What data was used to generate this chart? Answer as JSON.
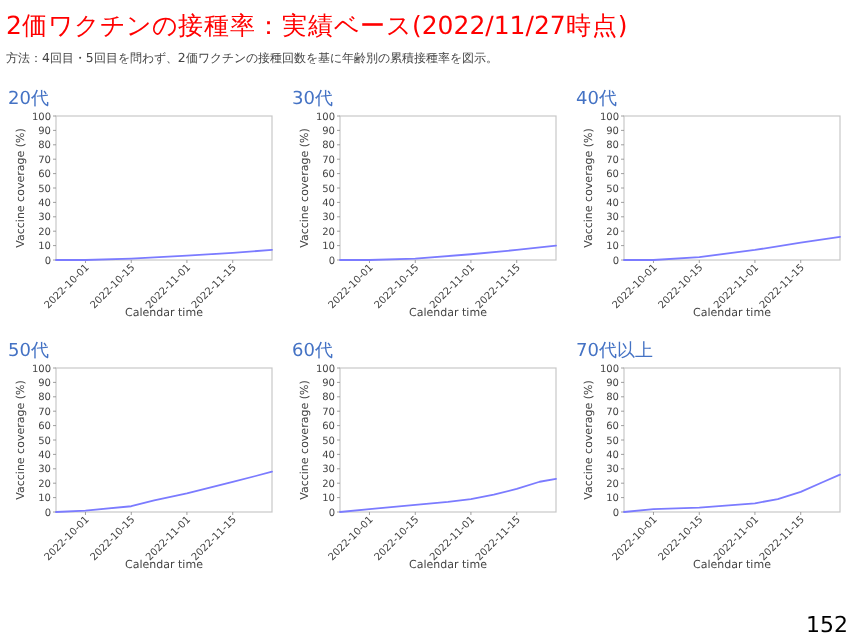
{
  "chart_data": [
    {
      "type": "line",
      "title": "20代",
      "annotations": [
        "2価ワクチンの接種率：実績ベース(2022/11/27時点)",
        "方法：4回目・5回目を問わず、2価ワクチンの接種回数を基に年齢別の累積接種率を図示。",
        "152"
      ],
      "xlabel": "Calendar time",
      "ylabel": "Vaccine coverage (%)",
      "x": [
        "2022-09-22",
        "2022-10-01",
        "2022-10-15",
        "2022-11-01",
        "2022-11-15",
        "2022-11-27"
      ],
      "series": [
        {
          "color": "#7b7bff",
          "values": [
            0,
            0,
            1,
            3,
            5,
            7
          ]
        }
      ],
      "xlim": [
        "2022-09-22",
        "2022-11-27"
      ],
      "ylim": [
        0,
        100
      ],
      "xticks": [
        "2022-10-01",
        "2022-10-15",
        "2022-11-01",
        "2022-11-15"
      ],
      "yticks": [
        0,
        10,
        20,
        30,
        40,
        50,
        60,
        70,
        80,
        90,
        100
      ]
    },
    {
      "type": "line",
      "title": "30代",
      "xlabel": "Calendar time",
      "ylabel": "Vaccine coverage (%)",
      "x": [
        "2022-09-22",
        "2022-10-01",
        "2022-10-15",
        "2022-11-01",
        "2022-11-15",
        "2022-11-27"
      ],
      "series": [
        {
          "color": "#7b7bff",
          "values": [
            0,
            0,
            1,
            4,
            7,
            10
          ]
        }
      ],
      "xlim": [
        "2022-09-22",
        "2022-11-27"
      ],
      "ylim": [
        0,
        100
      ],
      "xticks": [
        "2022-10-01",
        "2022-10-15",
        "2022-11-01",
        "2022-11-15"
      ],
      "yticks": [
        0,
        10,
        20,
        30,
        40,
        50,
        60,
        70,
        80,
        90,
        100
      ]
    },
    {
      "type": "line",
      "title": "40代",
      "xlabel": "Calendar time",
      "ylabel": "Vaccine coverage (%)",
      "x": [
        "2022-09-22",
        "2022-10-01",
        "2022-10-15",
        "2022-11-01",
        "2022-11-15",
        "2022-11-27"
      ],
      "series": [
        {
          "color": "#7b7bff",
          "values": [
            0,
            0,
            2,
            7,
            12,
            16
          ]
        }
      ],
      "xlim": [
        "2022-09-22",
        "2022-11-27"
      ],
      "ylim": [
        0,
        100
      ],
      "xticks": [
        "2022-10-01",
        "2022-10-15",
        "2022-11-01",
        "2022-11-15"
      ],
      "yticks": [
        0,
        10,
        20,
        30,
        40,
        50,
        60,
        70,
        80,
        90,
        100
      ]
    },
    {
      "type": "line",
      "title": "50代",
      "xlabel": "Calendar time",
      "ylabel": "Vaccine coverage (%)",
      "x": [
        "2022-09-22",
        "2022-10-01",
        "2022-10-15",
        "2022-10-22",
        "2022-11-01",
        "2022-11-08",
        "2022-11-15",
        "2022-11-22",
        "2022-11-27"
      ],
      "series": [
        {
          "color": "#7b7bff",
          "values": [
            0,
            1,
            4,
            8,
            13,
            17,
            21,
            25,
            28
          ]
        }
      ],
      "xlim": [
        "2022-09-22",
        "2022-11-27"
      ],
      "ylim": [
        0,
        100
      ],
      "xticks": [
        "2022-10-01",
        "2022-10-15",
        "2022-11-01",
        "2022-11-15"
      ],
      "yticks": [
        0,
        10,
        20,
        30,
        40,
        50,
        60,
        70,
        80,
        90,
        100
      ]
    },
    {
      "type": "line",
      "title": "60代",
      "xlabel": "Calendar time",
      "ylabel": "Vaccine coverage (%)",
      "x": [
        "2022-09-22",
        "2022-10-01",
        "2022-10-15",
        "2022-10-25",
        "2022-11-01",
        "2022-11-08",
        "2022-11-15",
        "2022-11-22",
        "2022-11-27"
      ],
      "series": [
        {
          "color": "#7b7bff",
          "values": [
            0,
            2,
            5,
            7,
            9,
            12,
            16,
            21,
            23
          ]
        }
      ],
      "xlim": [
        "2022-09-22",
        "2022-11-27"
      ],
      "ylim": [
        0,
        100
      ],
      "xticks": [
        "2022-10-01",
        "2022-10-15",
        "2022-11-01",
        "2022-11-15"
      ],
      "yticks": [
        0,
        10,
        20,
        30,
        40,
        50,
        60,
        70,
        80,
        90,
        100
      ]
    },
    {
      "type": "line",
      "title": "70代以上",
      "xlabel": "Calendar time",
      "ylabel": "Vaccine coverage (%)",
      "x": [
        "2022-09-22",
        "2022-10-01",
        "2022-10-15",
        "2022-11-01",
        "2022-11-08",
        "2022-11-15",
        "2022-11-22",
        "2022-11-27"
      ],
      "series": [
        {
          "color": "#7b7bff",
          "values": [
            0,
            2,
            3,
            6,
            9,
            14,
            21,
            26
          ]
        }
      ],
      "xlim": [
        "2022-09-22",
        "2022-11-27"
      ],
      "ylim": [
        0,
        100
      ],
      "xticks": [
        "2022-10-01",
        "2022-10-15",
        "2022-11-01",
        "2022-11-15"
      ],
      "yticks": [
        0,
        10,
        20,
        30,
        40,
        50,
        60,
        70,
        80,
        90,
        100
      ]
    }
  ]
}
